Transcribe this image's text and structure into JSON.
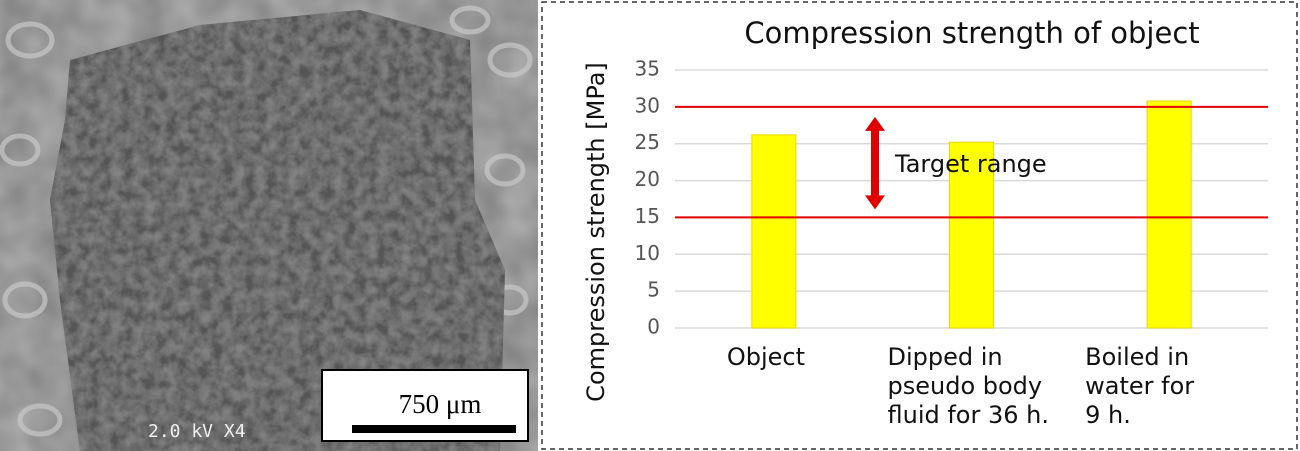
{
  "image": {
    "scale_bar_label": "750 μm",
    "caption": "2.0 kV X4"
  },
  "chart_data": {
    "type": "bar",
    "title": "Compression strength of object",
    "y_label": "Compression strength [MPa]",
    "categories": [
      "Object",
      "Dipped in\npseudo body\nfluid for 36 h.",
      "Boiled in\nwater for\n9 h."
    ],
    "values": [
      26.2,
      25.2,
      30.8
    ],
    "color": "#ffff00",
    "ylim": [
      0,
      35
    ],
    "yticks": [
      0,
      5,
      10,
      15,
      20,
      25,
      30,
      35
    ],
    "grid": true,
    "reference_lines": [
      {
        "value": 30,
        "color": "#e00000"
      },
      {
        "value": 15,
        "color": "#e00000"
      }
    ],
    "annotation": "Target range"
  }
}
